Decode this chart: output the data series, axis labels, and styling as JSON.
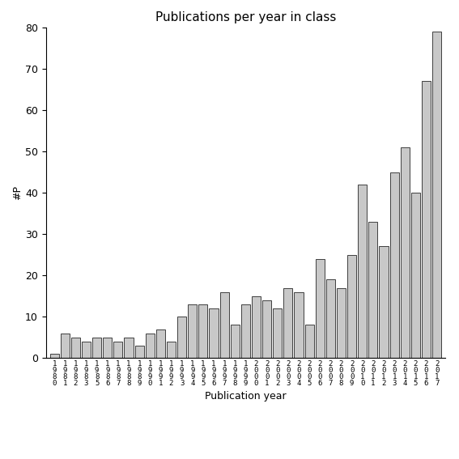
{
  "title": "Publications per year in class",
  "xlabel": "Publication year",
  "ylabel": "#P",
  "bar_color": "#c8c8c8",
  "bar_edgecolor": "#000000",
  "ylim": [
    0,
    80
  ],
  "yticks": [
    0,
    10,
    20,
    30,
    40,
    50,
    60,
    70,
    80
  ],
  "xlabels": [
    "1\n9\n8\n0",
    "1\n9\n8\n1",
    "1\n9\n8\n2",
    "1\n9\n8\n3",
    "1\n9\n8\n5",
    "1\n9\n8\n6",
    "1\n9\n8\n7",
    "1\n9\n8\n8",
    "1\n9\n8\n9",
    "1\n9\n9\n0",
    "1\n9\n9\n1",
    "1\n9\n9\n2",
    "1\n9\n9\n3",
    "1\n9\n9\n4",
    "1\n9\n9\n5",
    "1\n9\n9\n6",
    "1\n9\n9\n7",
    "1\n9\n9\n8",
    "1\n9\n9\n9",
    "2\n0\n0\n0",
    "2\n0\n0\n1",
    "2\n0\n0\n2",
    "2\n0\n0\n3",
    "2\n0\n0\n4",
    "2\n0\n0\n5",
    "2\n0\n0\n6",
    "2\n0\n0\n7",
    "2\n0\n0\n8",
    "2\n0\n0\n9",
    "2\n0\n1\n0",
    "2\n0\n1\n1",
    "2\n0\n1\n2",
    "2\n0\n1\n3",
    "2\n0\n1\n4",
    "2\n0\n1\n5",
    "2\n0\n1\n6",
    "2\n0\n1\n7"
  ],
  "values": [
    1,
    6,
    5,
    4,
    5,
    5,
    4,
    5,
    3,
    6,
    7,
    4,
    10,
    13,
    13,
    12,
    16,
    8,
    13,
    15,
    14,
    12,
    17,
    16,
    8,
    24,
    19,
    17,
    25,
    42,
    33,
    27,
    45,
    51,
    40,
    67,
    79
  ],
  "background_color": "#ffffff",
  "figsize": [
    5.67,
    5.67
  ],
  "dpi": 100
}
